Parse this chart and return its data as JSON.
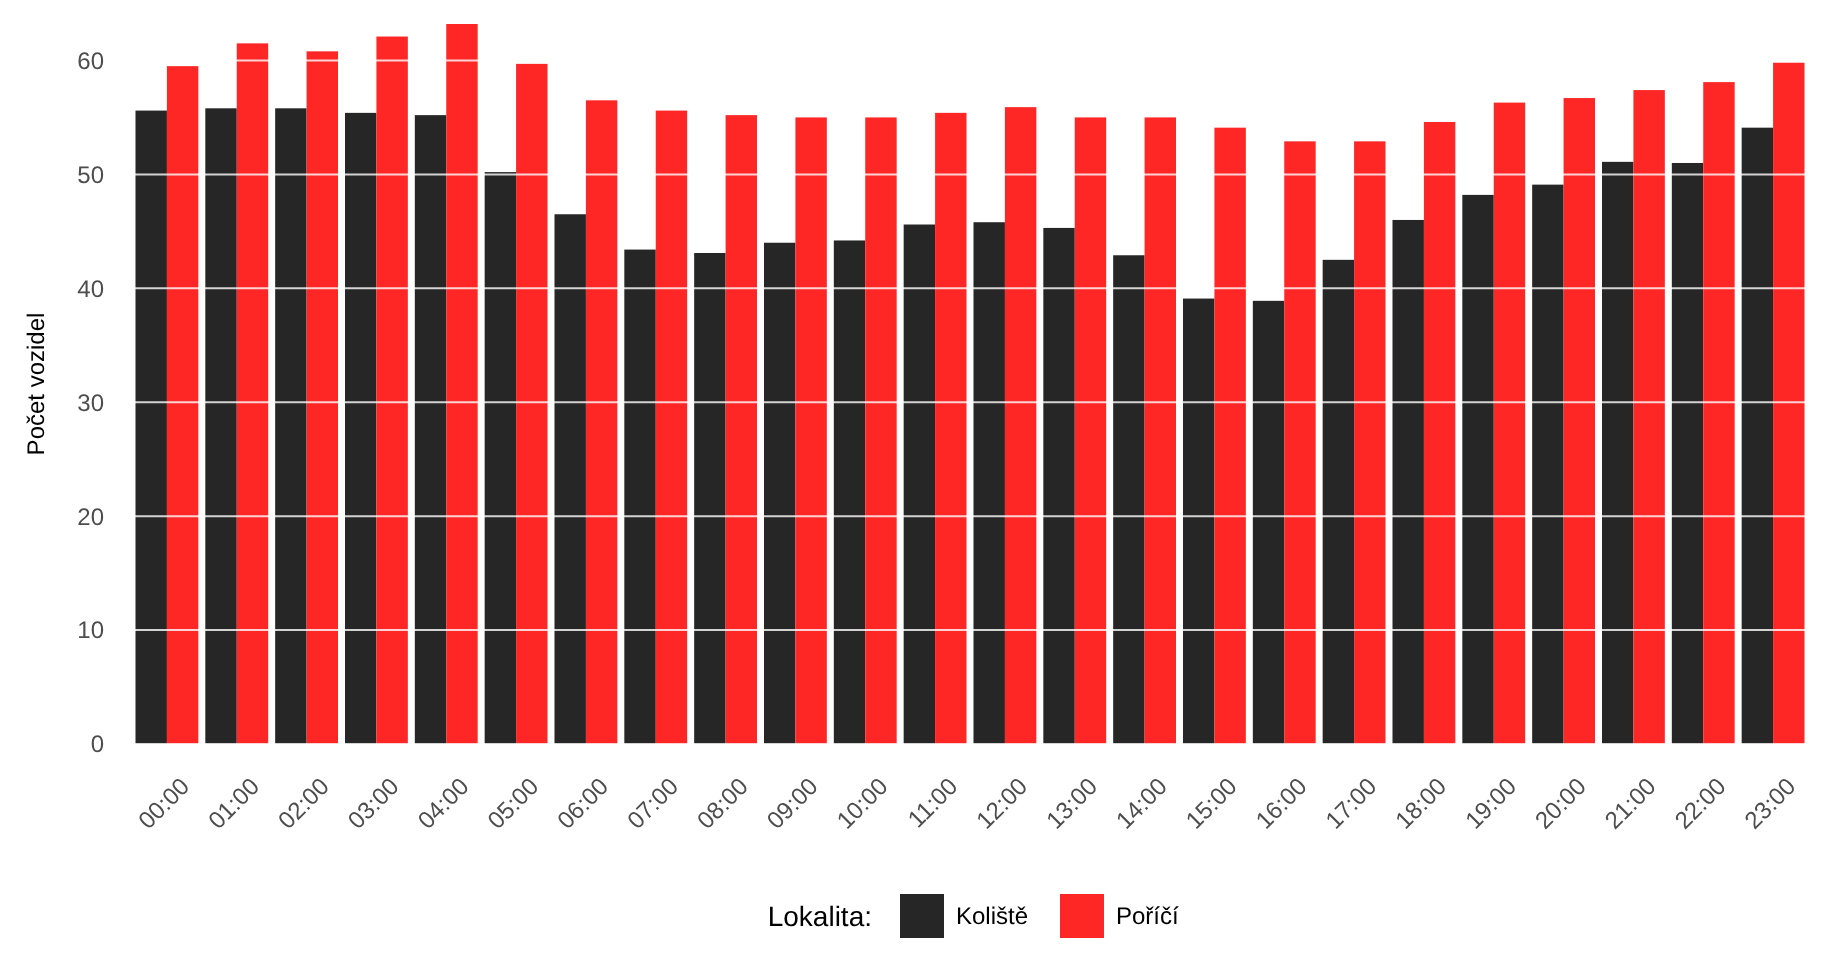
{
  "chart_data": {
    "type": "bar",
    "ylabel": "Počet vozidel",
    "legend_title": "Lokalita:",
    "categories": [
      "00:00",
      "01:00",
      "02:00",
      "03:00",
      "04:00",
      "05:00",
      "06:00",
      "07:00",
      "08:00",
      "09:00",
      "10:00",
      "11:00",
      "12:00",
      "13:00",
      "14:00",
      "15:00",
      "16:00",
      "17:00",
      "18:00",
      "19:00",
      "20:00",
      "21:00",
      "22:00",
      "23:00"
    ],
    "series": [
      {
        "name": "Koliště",
        "color": "#262626",
        "values": [
          55.6,
          55.8,
          55.8,
          55.4,
          55.2,
          50.2,
          46.5,
          43.4,
          43.1,
          44.0,
          44.2,
          45.6,
          45.8,
          45.3,
          42.9,
          39.1,
          38.9,
          42.5,
          46.0,
          48.2,
          49.1,
          51.1,
          51.0,
          54.1
        ]
      },
      {
        "name": "Poříčí",
        "color": "#ff2626",
        "values": [
          59.5,
          61.5,
          60.8,
          62.1,
          63.2,
          59.7,
          56.5,
          55.6,
          55.2,
          55.0,
          55.0,
          55.4,
          55.9,
          55.0,
          55.0,
          54.1,
          52.9,
          52.9,
          54.6,
          56.3,
          56.7,
          57.4,
          58.1,
          59.8
        ]
      }
    ],
    "ylim": [
      0,
      63.2
    ],
    "yticks": [
      0,
      10,
      20,
      30,
      40,
      50,
      60
    ],
    "grid": "y",
    "legend": "bottom"
  }
}
